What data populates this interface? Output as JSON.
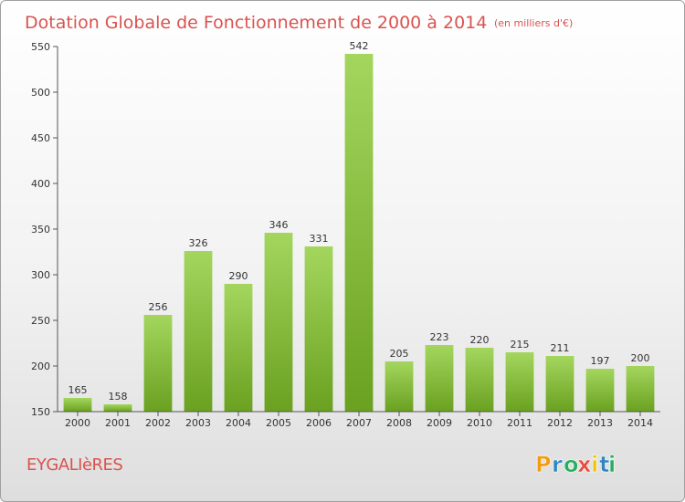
{
  "chart_data": {
    "type": "bar",
    "title": "Dotation Globale de Fonctionnement de 2000 à 2014",
    "subtitle": "(en milliers d'€)",
    "xlabel": "",
    "ylabel": "",
    "categories": [
      "2000",
      "2001",
      "2002",
      "2003",
      "2004",
      "2005",
      "2006",
      "2007",
      "2008",
      "2009",
      "2010",
      "2011",
      "2012",
      "2013",
      "2014"
    ],
    "values": [
      165,
      158,
      256,
      326,
      290,
      346,
      331,
      542,
      205,
      223,
      220,
      215,
      211,
      197,
      200
    ],
    "ylim": [
      150,
      550
    ],
    "yticks": [
      150,
      200,
      250,
      300,
      350,
      400,
      450,
      500,
      550
    ],
    "grid": false,
    "bar_color_top": "#a4d65e",
    "bar_color_bottom": "#6aa120"
  },
  "commune": "EYGALIèRES",
  "logo": {
    "letters": [
      "P",
      "r",
      "o",
      "x",
      "i",
      "t",
      "i"
    ],
    "colors": [
      "#f39c12",
      "#2e86c1",
      "#27ae60",
      "#e74c3c",
      "#f1c40f",
      "#2e86c1",
      "#27ae60"
    ]
  }
}
